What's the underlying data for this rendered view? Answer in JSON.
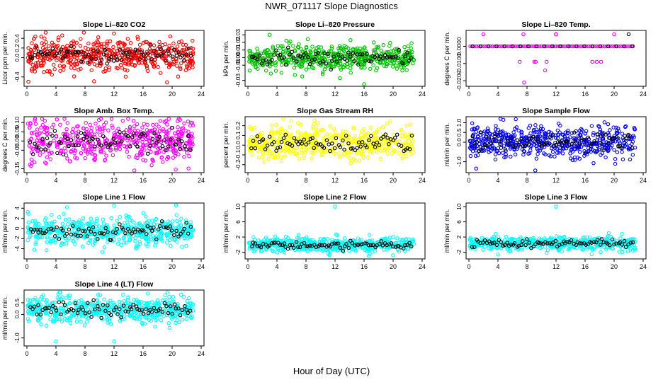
{
  "figure": {
    "title": "NWR_071117  Slope Diagnostics",
    "xlabel": "Hour of Day (UTC)"
  },
  "chart_data": [
    {
      "type": "scatter",
      "title": "Slope Li–820 CO2",
      "ylabel": "Licor ppm per min.",
      "color": "#ff0000",
      "xlim": [
        0,
        24
      ],
      "xticks": [
        0,
        4,
        8,
        12,
        16,
        20,
        24
      ],
      "ylim": [
        -0.55,
        0.52
      ],
      "yticks": [
        -0.4,
        0.0,
        0.2,
        0.4
      ],
      "ytick_labels": [
        "-0.4",
        "0.0",
        "0.2",
        "0.4"
      ],
      "center": 0.05,
      "spread": 0.16,
      "extra_points": [
        {
          "x": 12.0,
          "y": 0.5
        },
        {
          "x": 0.2,
          "y": -0.5
        }
      ]
    },
    {
      "type": "scatter",
      "title": "Slope Li–820 Pressure",
      "ylabel": "kPa per min.",
      "color": "#00c000",
      "xlim": [
        0,
        24
      ],
      "xticks": [
        0,
        4,
        8,
        12,
        16,
        20,
        24
      ],
      "ylim": [
        -0.035,
        0.033
      ],
      "yticks": [
        -0.03,
        -0.01,
        0.0,
        0.01,
        0.02,
        0.03
      ],
      "ytick_labels": [
        "-0.03",
        "-0.01",
        "0.00",
        "0.01",
        "0.02",
        "0.03"
      ],
      "center": 0.0,
      "spread": 0.009,
      "extra_points": [
        {
          "x": 3.0,
          "y": 0.03
        },
        {
          "x": 16.0,
          "y": -0.035
        }
      ]
    },
    {
      "type": "scatter",
      "title": "Slope Li–820 Temp.",
      "ylabel": "degrees C per min.",
      "color": "#ff00ff",
      "xlim": [
        0,
        24
      ],
      "xticks": [
        0,
        4,
        8,
        12,
        16,
        20,
        24
      ],
      "ylim": [
        -0.022,
        0.008
      ],
      "yticks": [
        -0.02,
        -0.01,
        0.0
      ],
      "ytick_labels": [
        "-0.0200",
        "-0.0100",
        "0.0000"
      ],
      "mode": "flat",
      "extra_points": [
        {
          "x": 2.0,
          "y": 0.007
        },
        {
          "x": 7.5,
          "y": 0.007
        },
        {
          "x": 12.0,
          "y": 0.007
        },
        {
          "x": 20.0,
          "y": 0.007
        },
        {
          "x": 7.0,
          "y": -0.009
        },
        {
          "x": 9.0,
          "y": -0.009
        },
        {
          "x": 9.2,
          "y": -0.009
        },
        {
          "x": 10.7,
          "y": -0.009
        },
        {
          "x": 17.0,
          "y": -0.009
        },
        {
          "x": 17.6,
          "y": -0.009
        },
        {
          "x": 18.2,
          "y": -0.009
        },
        {
          "x": 10.5,
          "y": -0.014
        },
        {
          "x": 7.6,
          "y": -0.021
        }
      ],
      "black_extra": [
        {
          "x": 12.0,
          "y": 0.007
        },
        {
          "x": 22.0,
          "y": 0.007
        }
      ]
    },
    {
      "type": "scatter",
      "title": "Slope Amb. Box Temp.",
      "ylabel": "degrees C per min.",
      "color": "#ff00ff",
      "xlim": [
        0,
        24
      ],
      "xticks": [
        0,
        4,
        8,
        12,
        16,
        20,
        24
      ],
      "ylim": [
        -0.16,
        0.12
      ],
      "yticks": [
        -0.15,
        -0.05,
        0.0,
        0.05,
        0.1
      ],
      "ytick_labels": [
        "-0.15",
        "-0.05",
        "0.00",
        "0.05",
        "0.10"
      ],
      "center": 0.0,
      "spread": 0.055,
      "extra_points": [
        {
          "x": 20.5,
          "y": -0.155
        }
      ]
    },
    {
      "type": "scatter",
      "title": "Slope Gas Stream RH",
      "ylabel": "percent per min.",
      "color": "#ffff00",
      "xlim": [
        0,
        24
      ],
      "xticks": [
        0,
        4,
        8,
        12,
        16,
        20,
        24
      ],
      "ylim": [
        -0.26,
        0.27
      ],
      "yticks": [
        -0.2,
        -0.1,
        0.0,
        0.1,
        0.2
      ],
      "ytick_labels": [
        "-0.2",
        "-0.1",
        "0.0",
        "0.1",
        "0.2"
      ],
      "center": 0.02,
      "spread": 0.085,
      "extra_points": []
    },
    {
      "type": "scatter",
      "title": "Slope Sample Flow",
      "ylabel": "ml/min per min.",
      "color": "#0000ff",
      "xlim": [
        0,
        24
      ],
      "xticks": [
        0,
        4,
        8,
        12,
        16,
        20,
        24
      ],
      "ylim": [
        -1.45,
        1.2
      ],
      "yticks": [
        -1.0,
        0.0,
        0.5,
        1.0
      ],
      "ytick_labels": [
        "-1.0",
        "0.0",
        "0.5",
        "1.0"
      ],
      "center": 0.05,
      "spread": 0.42,
      "extra_points": [
        {
          "x": 1.0,
          "y": -1.35
        }
      ]
    },
    {
      "type": "scatter",
      "title": "Slope Line 1 Flow",
      "ylabel": "ml/min per min.",
      "color": "#00ffff",
      "xlim": [
        0,
        24
      ],
      "xticks": [
        0,
        4,
        8,
        12,
        16,
        20,
        24
      ],
      "ylim": [
        -5.6,
        4.6
      ],
      "yticks": [
        -4,
        -2,
        0,
        2,
        4
      ],
      "ytick_labels": [
        "-4",
        "-2",
        "0",
        "2",
        "4"
      ],
      "center": -0.6,
      "spread": 1.3,
      "extra_points": [
        {
          "x": 12.0,
          "y": 4.5
        }
      ]
    },
    {
      "type": "scatter",
      "title": "Slope Line 2 Flow",
      "ylabel": "ml/min per min.",
      "color": "#00ffff",
      "xlim": [
        0,
        24
      ],
      "xticks": [
        0,
        4,
        8,
        12,
        16,
        20,
        24
      ],
      "ylim": [
        -3.2,
        10.4
      ],
      "yticks": [
        -2,
        2,
        6,
        10
      ],
      "ytick_labels": [
        "-2",
        "2",
        "6",
        "10"
      ],
      "center": 0.0,
      "spread": 0.9,
      "extra_points": [
        {
          "x": 12.0,
          "y": 10.0
        },
        {
          "x": 20.0,
          "y": -2.8
        }
      ]
    },
    {
      "type": "scatter",
      "title": "Slope Line 3 Flow",
      "ylabel": "ml/min per min.",
      "color": "#00ffff",
      "xlim": [
        0,
        24
      ],
      "xticks": [
        0,
        4,
        8,
        12,
        16,
        20,
        24
      ],
      "ylim": [
        -3.2,
        10.4
      ],
      "yticks": [
        -2,
        2,
        6,
        10
      ],
      "ytick_labels": [
        "-2",
        "2",
        "6",
        "10"
      ],
      "center": 0.3,
      "spread": 0.9,
      "extra_points": [
        {
          "x": 12.0,
          "y": 10.0
        },
        {
          "x": 4.0,
          "y": -2.6
        }
      ]
    },
    {
      "type": "scatter",
      "title": "Slope Line 4 (LT) Flow",
      "ylabel": "ml/min per min.",
      "color": "#00ffff",
      "xlim": [
        0,
        24
      ],
      "xticks": [
        0,
        4,
        8,
        12,
        16,
        20,
        24
      ],
      "ylim": [
        -1.25,
        0.95
      ],
      "yticks": [
        -1.0,
        0.0,
        0.5
      ],
      "ytick_labels": [
        "-1.0",
        "0.0",
        "0.5"
      ],
      "center": 0.2,
      "spread": 0.28,
      "extra_points": [
        {
          "x": 12.0,
          "y": -1.15
        },
        {
          "x": 4.0,
          "y": -1.15
        }
      ]
    }
  ]
}
